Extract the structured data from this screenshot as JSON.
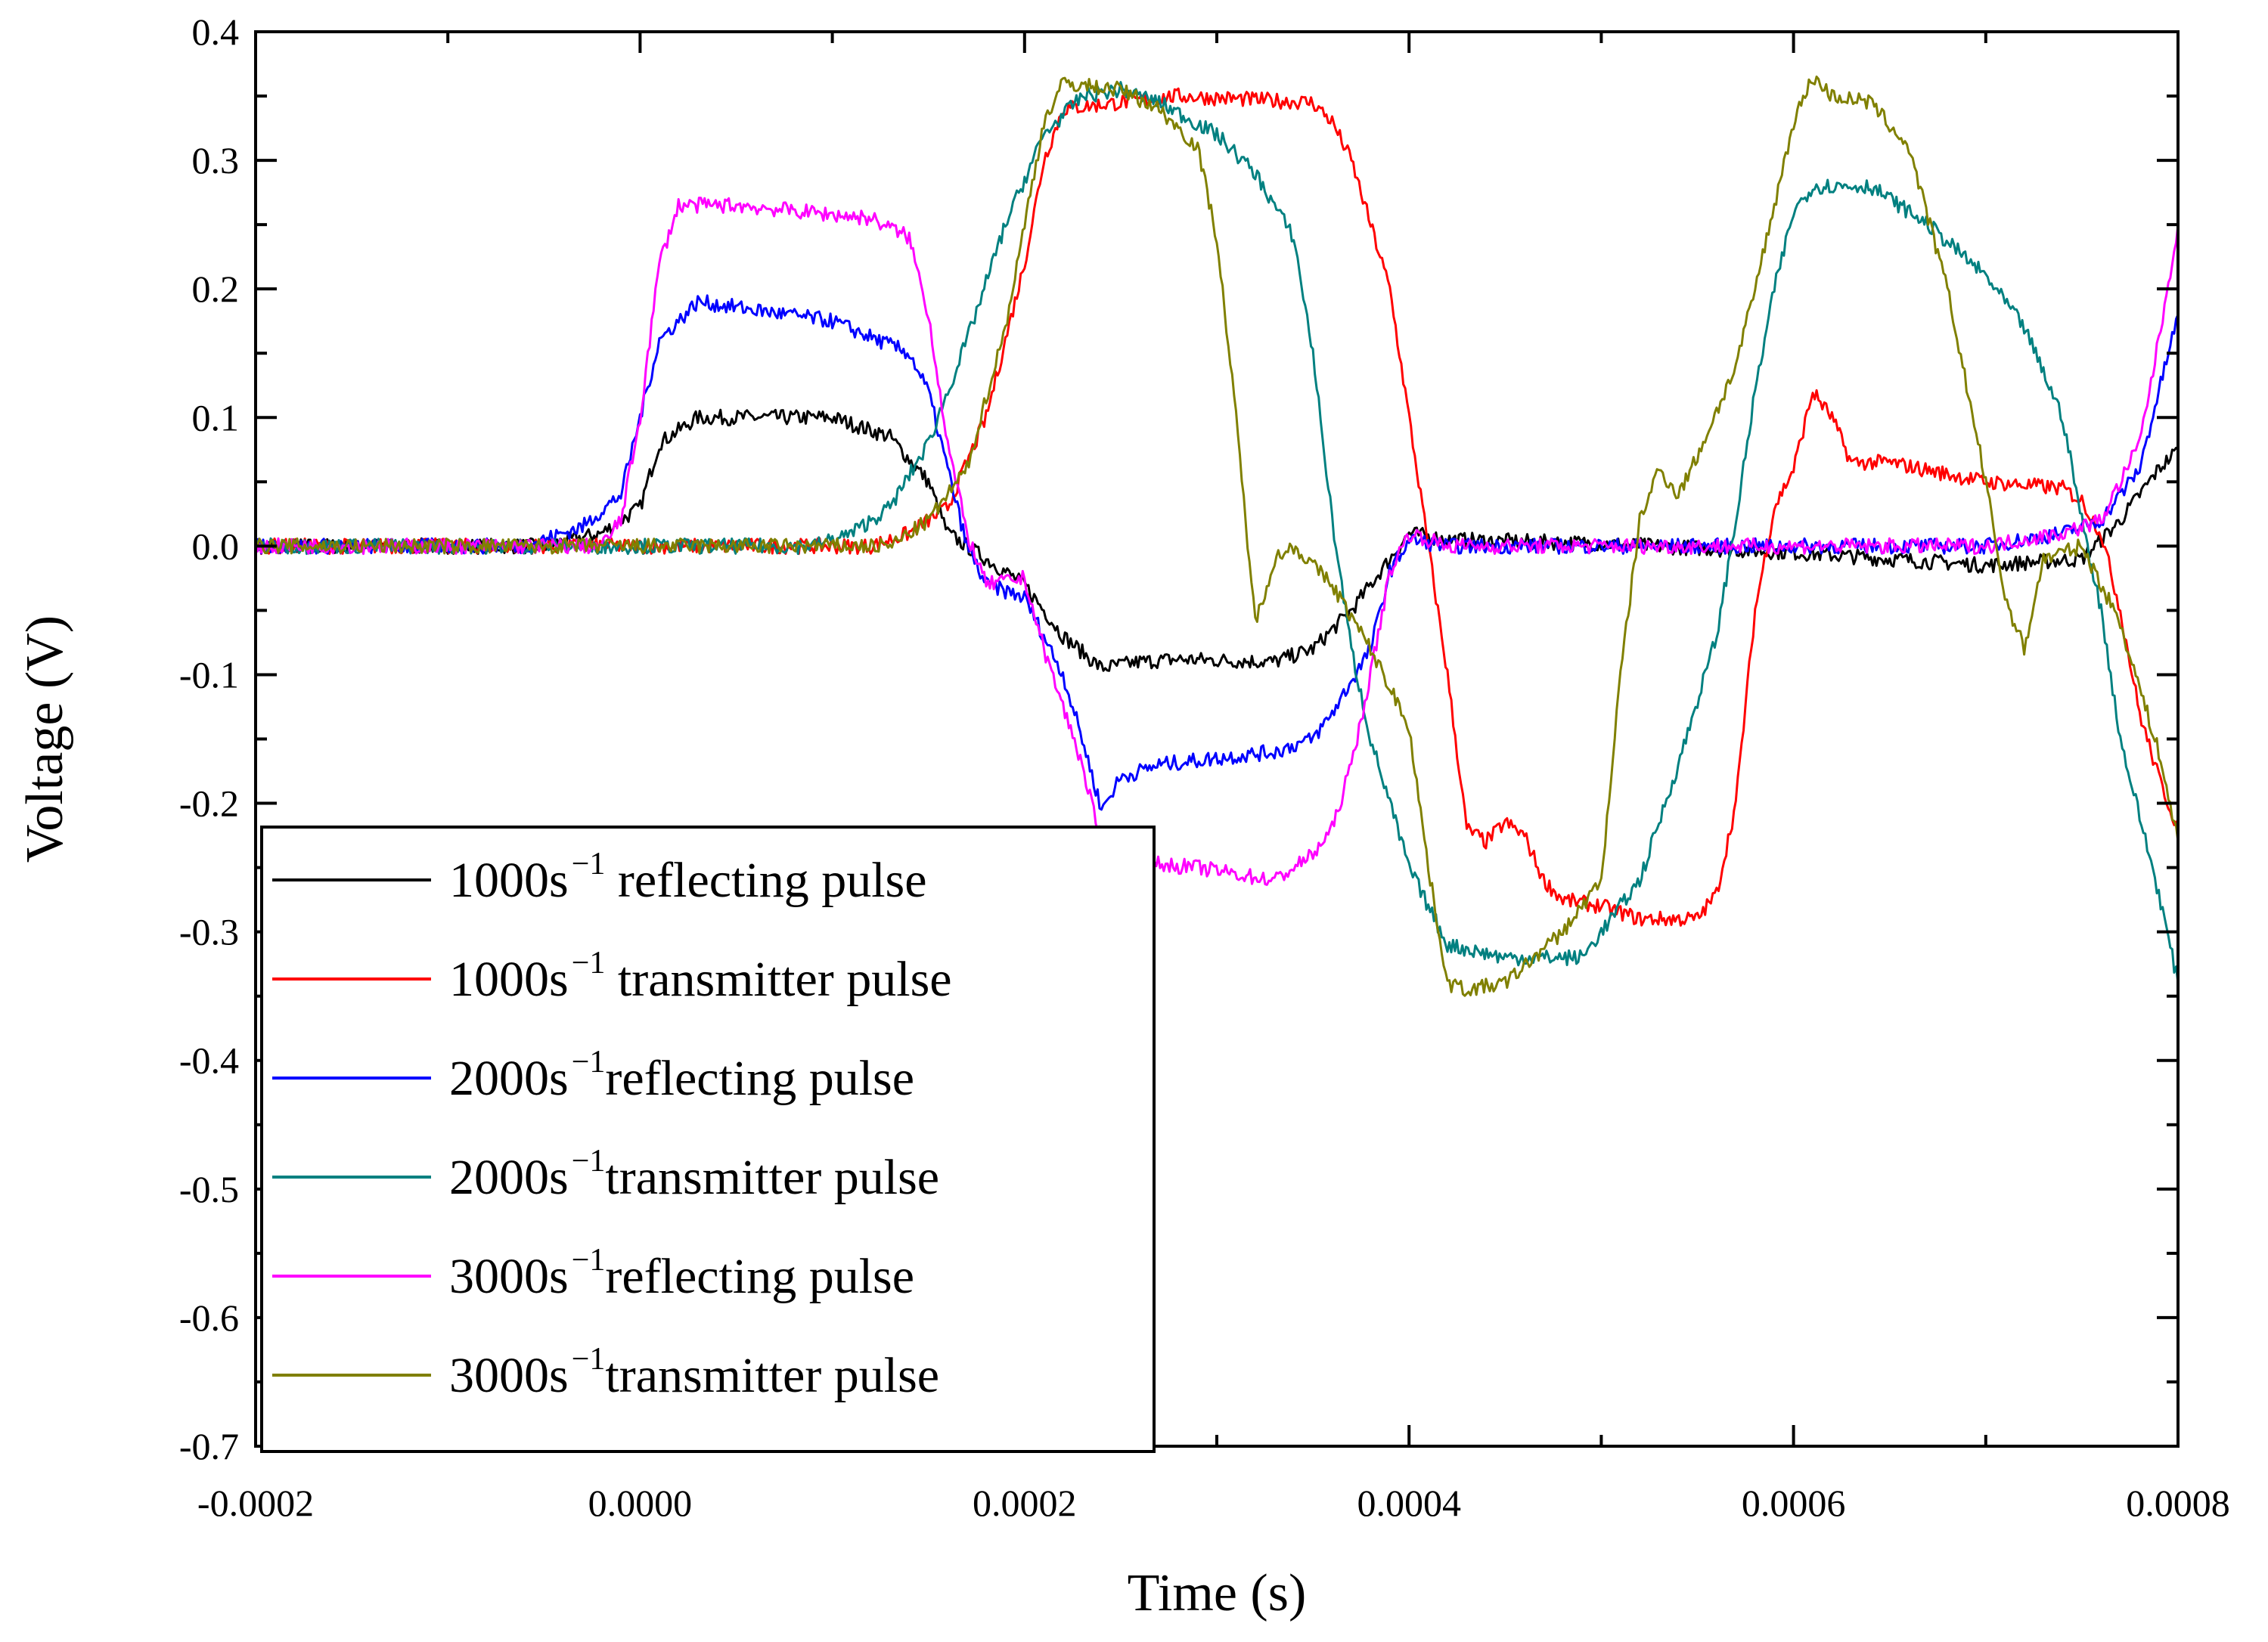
{
  "chart_data": {
    "type": "line",
    "title": "",
    "xlabel": "Time (s)",
    "ylabel": "Voltage (V)",
    "xlim": [
      -0.0002,
      0.0008
    ],
    "ylim": [
      -0.7,
      0.4
    ],
    "x_ticks": [
      -0.0002,
      0.0,
      0.0002,
      0.0004,
      0.0006,
      0.0008
    ],
    "x_tick_labels": [
      "-0.0002",
      "0.0000",
      "0.0002",
      "0.0004",
      "0.0006",
      "0.0008"
    ],
    "y_ticks": [
      0.4,
      0.3,
      0.2,
      0.1,
      0.0,
      -0.1,
      -0.2,
      -0.3,
      -0.4,
      -0.5,
      -0.6,
      -0.7
    ],
    "y_tick_labels": [
      "0.4",
      "0.3",
      "0.2",
      "0.1",
      "0.0",
      "-0.1",
      "-0.2",
      "-0.3",
      "-0.4",
      "-0.5",
      "-0.6",
      "-0.7"
    ],
    "grid": false,
    "legend_position": "bottom-left",
    "series": [
      {
        "name": "1000s⁻¹ reflecting pulse",
        "label_main": "1000s",
        "label_sup": "−1",
        "label_rest": " reflecting pulse",
        "color": "#000000",
        "points": [
          [
            -0.0002,
            0.0
          ],
          [
            -5e-05,
            0.0
          ],
          [
            -2e-05,
            0.01
          ],
          [
            0.0,
            0.03
          ],
          [
            1e-05,
            0.08
          ],
          [
            3e-05,
            0.1
          ],
          [
            0.0001,
            0.1
          ],
          [
            0.00013,
            0.085
          ],
          [
            0.00015,
            0.05
          ],
          [
            0.00016,
            0.01
          ],
          [
            0.00018,
            -0.01
          ],
          [
            0.0002,
            -0.03
          ],
          [
            0.00022,
            -0.07
          ],
          [
            0.00024,
            -0.095
          ],
          [
            0.00026,
            -0.09
          ],
          [
            0.00028,
            -0.088
          ],
          [
            0.00033,
            -0.09
          ],
          [
            0.00035,
            -0.08
          ],
          [
            0.00037,
            -0.05
          ],
          [
            0.00039,
            -0.01
          ],
          [
            0.0004,
            0.01
          ],
          [
            0.00042,
            0.005
          ],
          [
            0.0005,
            0.002
          ],
          [
            0.0006,
            -0.005
          ],
          [
            0.0007,
            -0.015
          ],
          [
            0.00075,
            -0.01
          ],
          [
            0.00077,
            0.02
          ],
          [
            0.00079,
            0.06
          ],
          [
            0.0008,
            0.075
          ]
        ]
      },
      {
        "name": "1000s⁻¹ transmitter pulse",
        "label_main": "1000s",
        "label_sup": "−1",
        "label_rest": " transmitter pulse",
        "color": "#ff0000",
        "points": [
          [
            -0.0002,
            0.0
          ],
          [
            0.00012,
            0.0
          ],
          [
            0.00014,
            0.01
          ],
          [
            0.00016,
            0.03
          ],
          [
            0.00018,
            0.1
          ],
          [
            0.0002,
            0.22
          ],
          [
            0.00021,
            0.3
          ],
          [
            0.00022,
            0.34
          ],
          [
            0.00025,
            0.345
          ],
          [
            0.00028,
            0.35
          ],
          [
            0.00035,
            0.345
          ],
          [
            0.00036,
            0.33
          ],
          [
            0.00037,
            0.3
          ],
          [
            0.00038,
            0.25
          ],
          [
            0.00039,
            0.2
          ],
          [
            0.000395,
            0.15
          ],
          [
            0.0004,
            0.1
          ],
          [
            0.00041,
            0.0
          ],
          [
            0.00042,
            -0.1
          ],
          [
            0.00043,
            -0.22
          ],
          [
            0.00044,
            -0.23
          ],
          [
            0.00045,
            -0.215
          ],
          [
            0.00046,
            -0.225
          ],
          [
            0.00047,
            -0.26
          ],
          [
            0.00048,
            -0.275
          ],
          [
            0.0005,
            -0.28
          ],
          [
            0.00052,
            -0.29
          ],
          [
            0.00055,
            -0.29
          ],
          [
            0.00056,
            -0.27
          ],
          [
            0.00057,
            -0.2
          ],
          [
            0.00058,
            -0.05
          ],
          [
            0.00059,
            0.03
          ],
          [
            0.0006,
            0.06
          ],
          [
            0.00061,
            0.12
          ],
          [
            0.00062,
            0.1
          ],
          [
            0.00063,
            0.065
          ],
          [
            0.00065,
            0.065
          ],
          [
            0.0007,
            0.05
          ],
          [
            0.00074,
            0.045
          ],
          [
            0.00075,
            0.035
          ],
          [
            0.00076,
            0.01
          ],
          [
            0.00077,
            -0.05
          ],
          [
            0.00078,
            -0.13
          ],
          [
            0.00079,
            -0.18
          ],
          [
            0.0008,
            -0.22
          ]
        ]
      },
      {
        "name": "2000s⁻¹reflecting pulse",
        "label_main": "2000s",
        "label_sup": "−1",
        "label_rest": "reflecting pulse",
        "color": "#0000ff",
        "points": [
          [
            -0.0002,
            0.0
          ],
          [
            -6e-05,
            0.0
          ],
          [
            -3e-05,
            0.015
          ],
          [
            -1e-05,
            0.04
          ],
          [
            0.0,
            0.1
          ],
          [
            1e-05,
            0.16
          ],
          [
            3e-05,
            0.19
          ],
          [
            0.0001,
            0.175
          ],
          [
            0.00014,
            0.15
          ],
          [
            0.00015,
            0.12
          ],
          [
            0.00016,
            0.06
          ],
          [
            0.00017,
            0.0
          ],
          [
            0.00018,
            -0.03
          ],
          [
            0.0002,
            -0.04
          ],
          [
            0.00022,
            -0.1
          ],
          [
            0.00023,
            -0.15
          ],
          [
            0.00024,
            -0.205
          ],
          [
            0.00025,
            -0.18
          ],
          [
            0.00027,
            -0.17
          ],
          [
            0.00033,
            -0.16
          ],
          [
            0.00035,
            -0.15
          ],
          [
            0.00036,
            -0.13
          ],
          [
            0.00038,
            -0.08
          ],
          [
            0.00039,
            -0.02
          ],
          [
            0.0004,
            0.005
          ],
          [
            0.00042,
            0.0
          ],
          [
            0.0007,
            0.0
          ],
          [
            0.00074,
            0.01
          ],
          [
            0.00076,
            0.02
          ],
          [
            0.00078,
            0.06
          ],
          [
            0.00079,
            0.12
          ],
          [
            0.0008,
            0.18
          ]
        ]
      },
      {
        "name": "2000s⁻¹transmitter pulse",
        "label_main": "2000s",
        "label_sup": "−1",
        "label_rest": "transmitter pulse",
        "color": "#008080",
        "points": [
          [
            -0.0002,
            0.0
          ],
          [
            9e-05,
            0.0
          ],
          [
            0.00011,
            0.01
          ],
          [
            0.00013,
            0.03
          ],
          [
            0.00015,
            0.08
          ],
          [
            0.00017,
            0.16
          ],
          [
            0.00019,
            0.25
          ],
          [
            0.00021,
            0.32
          ],
          [
            0.00023,
            0.35
          ],
          [
            0.00025,
            0.355
          ],
          [
            0.00027,
            0.345
          ],
          [
            0.0003,
            0.32
          ],
          [
            0.00032,
            0.29
          ],
          [
            0.00034,
            0.24
          ],
          [
            0.00035,
            0.15
          ],
          [
            0.00036,
            0.02
          ],
          [
            0.00037,
            -0.08
          ],
          [
            0.00038,
            -0.15
          ],
          [
            0.0004,
            -0.25
          ],
          [
            0.00042,
            -0.31
          ],
          [
            0.00045,
            -0.32
          ],
          [
            0.00049,
            -0.32
          ],
          [
            0.0005,
            -0.3
          ],
          [
            0.00052,
            -0.26
          ],
          [
            0.00054,
            -0.17
          ],
          [
            0.00056,
            -0.07
          ],
          [
            0.00057,
            0.02
          ],
          [
            0.00058,
            0.12
          ],
          [
            0.00059,
            0.2
          ],
          [
            0.0006,
            0.26
          ],
          [
            0.00061,
            0.28
          ],
          [
            0.00064,
            0.28
          ],
          [
            0.00067,
            0.25
          ],
          [
            0.0007,
            0.21
          ],
          [
            0.00072,
            0.17
          ],
          [
            0.00074,
            0.1
          ],
          [
            0.00075,
            0.02
          ],
          [
            0.00076,
            -0.05
          ],
          [
            0.00077,
            -0.15
          ],
          [
            0.00078,
            -0.21
          ],
          [
            0.00079,
            -0.27
          ],
          [
            0.0008,
            -0.34
          ]
        ]
      },
      {
        "name": "3000s⁻¹reflecting pulse",
        "label_main": "3000s",
        "label_sup": "−1",
        "label_rest": "reflecting pulse",
        "color": "#ff00ff",
        "points": [
          [
            -0.0002,
            0.0
          ],
          [
            -2e-05,
            0.0
          ],
          [
            -1e-05,
            0.02
          ],
          [
            0.0,
            0.1
          ],
          [
            1e-05,
            0.22
          ],
          [
            2e-05,
            0.265
          ],
          [
            5e-05,
            0.265
          ],
          [
            0.00012,
            0.255
          ],
          [
            0.00014,
            0.24
          ],
          [
            0.00015,
            0.18
          ],
          [
            0.00016,
            0.08
          ],
          [
            0.00017,
            0.01
          ],
          [
            0.00018,
            -0.03
          ],
          [
            0.0002,
            -0.025
          ],
          [
            0.00021,
            -0.08
          ],
          [
            0.00023,
            -0.17
          ],
          [
            0.00024,
            -0.23
          ],
          [
            0.00025,
            -0.245
          ],
          [
            0.00029,
            -0.25
          ],
          [
            0.00033,
            -0.26
          ],
          [
            0.00035,
            -0.24
          ],
          [
            0.00036,
            -0.22
          ],
          [
            0.00037,
            -0.17
          ],
          [
            0.00038,
            -0.1
          ],
          [
            0.00039,
            -0.02
          ],
          [
            0.0004,
            0.01
          ],
          [
            0.00041,
            0.005
          ],
          [
            0.00042,
            0.0
          ],
          [
            0.0007,
            0.0
          ],
          [
            0.00074,
            0.01
          ],
          [
            0.00076,
            0.02
          ],
          [
            0.00078,
            0.08
          ],
          [
            0.00079,
            0.16
          ],
          [
            0.0008,
            0.25
          ]
        ]
      },
      {
        "name": "3000s⁻¹transmitter pulse",
        "label_main": "3000s",
        "label_sup": "−1",
        "label_rest": "transmitter pulse",
        "color": "#808000",
        "points": [
          [
            -0.0002,
            0.0
          ],
          [
            0.00013,
            0.0
          ],
          [
            0.00015,
            0.02
          ],
          [
            0.00017,
            0.06
          ],
          [
            0.00019,
            0.17
          ],
          [
            0.0002,
            0.25
          ],
          [
            0.00021,
            0.33
          ],
          [
            0.00022,
            0.36
          ],
          [
            0.00025,
            0.355
          ],
          [
            0.00027,
            0.34
          ],
          [
            0.00029,
            0.31
          ],
          [
            0.0003,
            0.24
          ],
          [
            0.00031,
            0.1
          ],
          [
            0.00032,
            -0.06
          ],
          [
            0.00033,
            -0.01
          ],
          [
            0.00034,
            0.0
          ],
          [
            0.00036,
            -0.03
          ],
          [
            0.00038,
            -0.08
          ],
          [
            0.0004,
            -0.14
          ],
          [
            0.00041,
            -0.25
          ],
          [
            0.00042,
            -0.34
          ],
          [
            0.00043,
            -0.345
          ],
          [
            0.00045,
            -0.34
          ],
          [
            0.00048,
            -0.3
          ],
          [
            0.0005,
            -0.26
          ],
          [
            0.00051,
            -0.1
          ],
          [
            0.00052,
            0.02
          ],
          [
            0.00053,
            0.06
          ],
          [
            0.00054,
            0.04
          ],
          [
            0.00055,
            0.07
          ],
          [
            0.00057,
            0.14
          ],
          [
            0.00058,
            0.2
          ],
          [
            0.0006,
            0.33
          ],
          [
            0.00061,
            0.365
          ],
          [
            0.00062,
            0.35
          ],
          [
            0.00064,
            0.345
          ],
          [
            0.00066,
            0.31
          ],
          [
            0.00068,
            0.2
          ],
          [
            0.0007,
            0.05
          ],
          [
            0.00071,
            -0.04
          ],
          [
            0.00072,
            -0.08
          ],
          [
            0.00073,
            -0.01
          ],
          [
            0.00075,
            0.0
          ],
          [
            0.00077,
            -0.06
          ],
          [
            0.00079,
            -0.16
          ],
          [
            0.0008,
            -0.23
          ]
        ]
      }
    ]
  }
}
